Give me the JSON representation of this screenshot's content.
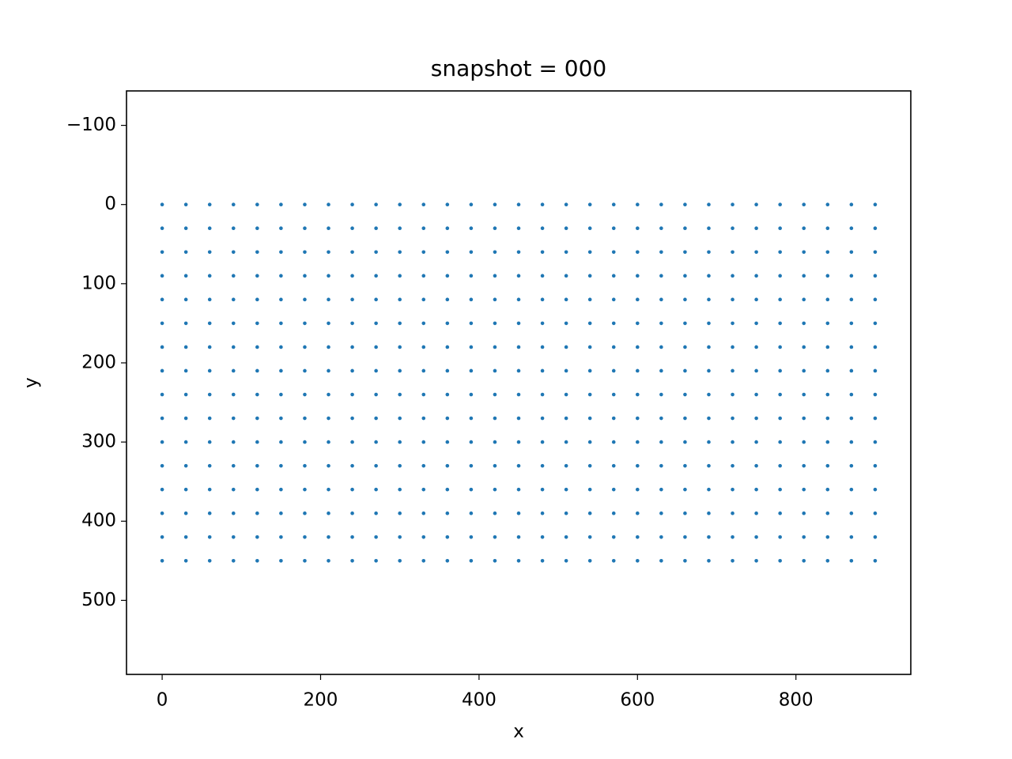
{
  "chart_data": {
    "type": "scatter",
    "title": "snapshot = 000",
    "x_label": "x",
    "y_label": "y",
    "color": "#1f77b4",
    "grid": false,
    "y_inverted": true,
    "xlim": [
      -45,
      945
    ],
    "ylim": [
      593.5,
      -143.5
    ],
    "xticks": [
      0,
      200,
      400,
      600,
      800
    ],
    "yticks": [
      {
        "value": -100,
        "label": "−100"
      },
      0,
      100,
      200,
      300,
      400,
      500
    ],
    "x": [
      0,
      30,
      60,
      90,
      120,
      150,
      180,
      210,
      240,
      270,
      300,
      330,
      360,
      390,
      420,
      450,
      480,
      510,
      540,
      570,
      600,
      630,
      660,
      690,
      720,
      750,
      780,
      810,
      840,
      870,
      900,
      0,
      30,
      60,
      90,
      120,
      150,
      180,
      210,
      240,
      270,
      300,
      330,
      360,
      390,
      420,
      450,
      480,
      510,
      540,
      570,
      600,
      630,
      660,
      690,
      720,
      750,
      780,
      810,
      840,
      870,
      900,
      0,
      30,
      60,
      90,
      120,
      150,
      180,
      210,
      240,
      270,
      300,
      330,
      360,
      390,
      420,
      450,
      480,
      510,
      540,
      570,
      600,
      630,
      660,
      690,
      720,
      750,
      780,
      810,
      840,
      870,
      900,
      0,
      30,
      60,
      90,
      120,
      150,
      180,
      210,
      240,
      270,
      300,
      330,
      360,
      390,
      420,
      450,
      480,
      510,
      540,
      570,
      600,
      630,
      660,
      690,
      720,
      750,
      780,
      810,
      840,
      870,
      900,
      0,
      30,
      60,
      90,
      120,
      150,
      180,
      210,
      240,
      270,
      300,
      330,
      360,
      390,
      420,
      450,
      480,
      510,
      540,
      570,
      600,
      630,
      660,
      690,
      720,
      750,
      780,
      810,
      840,
      870,
      900,
      0,
      30,
      60,
      90,
      120,
      150,
      180,
      210,
      240,
      270,
      300,
      330,
      360,
      390,
      420,
      450,
      480,
      510,
      540,
      570,
      600,
      630,
      660,
      690,
      720,
      750,
      780,
      810,
      840,
      870,
      900,
      0,
      30,
      60,
      90,
      120,
      150,
      180,
      210,
      240,
      270,
      300,
      330,
      360,
      390,
      420,
      450,
      480,
      510,
      540,
      570,
      600,
      630,
      660,
      690,
      720,
      750,
      780,
      810,
      840,
      870,
      900,
      0,
      30,
      60,
      90,
      120,
      150,
      180,
      210,
      240,
      270,
      300,
      330,
      360,
      390,
      420,
      450,
      480,
      510,
      540,
      570,
      600,
      630,
      660,
      690,
      720,
      750,
      780,
      810,
      840,
      870,
      900,
      0,
      30,
      60,
      90,
      120,
      150,
      180,
      210,
      240,
      270,
      300,
      330,
      360,
      390,
      420,
      450,
      480,
      510,
      540,
      570,
      600,
      630,
      660,
      690,
      720,
      750,
      780,
      810,
      840,
      870,
      900,
      0,
      30,
      60,
      90,
      120,
      150,
      180,
      210,
      240,
      270,
      300,
      330,
      360,
      390,
      420,
      450,
      480,
      510,
      540,
      570,
      600,
      630,
      660,
      690,
      720,
      750,
      780,
      810,
      840,
      870,
      900,
      0,
      30,
      60,
      90,
      120,
      150,
      180,
      210,
      240,
      270,
      300,
      330,
      360,
      390,
      420,
      450,
      480,
      510,
      540,
      570,
      600,
      630,
      660,
      690,
      720,
      750,
      780,
      810,
      840,
      870,
      900,
      0,
      30,
      60,
      90,
      120,
      150,
      180,
      210,
      240,
      270,
      300,
      330,
      360,
      390,
      420,
      450,
      480,
      510,
      540,
      570,
      600,
      630,
      660,
      690,
      720,
      750,
      780,
      810,
      840,
      870,
      900,
      0,
      30,
      60,
      90,
      120,
      150,
      180,
      210,
      240,
      270,
      300,
      330,
      360,
      390,
      420,
      450,
      480,
      510,
      540,
      570,
      600,
      630,
      660,
      690,
      720,
      750,
      780,
      810,
      840,
      870,
      900,
      0,
      30,
      60,
      90,
      120,
      150,
      180,
      210,
      240,
      270,
      300,
      330,
      360,
      390,
      420,
      450,
      480,
      510,
      540,
      570,
      600,
      630,
      660,
      690,
      720,
      750,
      780,
      810,
      840,
      870,
      900,
      0,
      30,
      60,
      90,
      120,
      150,
      180,
      210,
      240,
      270,
      300,
      330,
      360,
      390,
      420,
      450,
      480,
      510,
      540,
      570,
      600,
      630,
      660,
      690,
      720,
      750,
      780,
      810,
      840,
      870,
      900,
      0,
      30,
      60,
      90,
      120,
      150,
      180,
      210,
      240,
      270,
      300,
      330,
      360,
      390,
      420,
      450,
      480,
      510,
      540,
      570,
      600,
      630,
      660,
      690,
      720,
      750,
      780,
      810,
      840,
      870,
      900
    ],
    "values": [
      0,
      0,
      0,
      0,
      0,
      0,
      0,
      0,
      0,
      0,
      0,
      0,
      0,
      0,
      0,
      0,
      0,
      0,
      0,
      0,
      0,
      0,
      0,
      0,
      0,
      0,
      0,
      0,
      0,
      0,
      0,
      30,
      30,
      30,
      30,
      30,
      30,
      30,
      30,
      30,
      30,
      30,
      30,
      30,
      30,
      30,
      30,
      30,
      30,
      30,
      30,
      30,
      30,
      30,
      30,
      30,
      30,
      30,
      30,
      30,
      30,
      30,
      60,
      60,
      60,
      60,
      60,
      60,
      60,
      60,
      60,
      60,
      60,
      60,
      60,
      60,
      60,
      60,
      60,
      60,
      60,
      60,
      60,
      60,
      60,
      60,
      60,
      60,
      60,
      60,
      60,
      60,
      60,
      90,
      90,
      90,
      90,
      90,
      90,
      90,
      90,
      90,
      90,
      90,
      90,
      90,
      90,
      90,
      90,
      90,
      90,
      90,
      90,
      90,
      90,
      90,
      90,
      90,
      90,
      90,
      90,
      90,
      90,
      90,
      120,
      120,
      120,
      120,
      120,
      120,
      120,
      120,
      120,
      120,
      120,
      120,
      120,
      120,
      120,
      120,
      120,
      120,
      120,
      120,
      120,
      120,
      120,
      120,
      120,
      120,
      120,
      120,
      120,
      120,
      120,
      150,
      150,
      150,
      150,
      150,
      150,
      150,
      150,
      150,
      150,
      150,
      150,
      150,
      150,
      150,
      150,
      150,
      150,
      150,
      150,
      150,
      150,
      150,
      150,
      150,
      150,
      150,
      150,
      150,
      150,
      150,
      180,
      180,
      180,
      180,
      180,
      180,
      180,
      180,
      180,
      180,
      180,
      180,
      180,
      180,
      180,
      180,
      180,
      180,
      180,
      180,
      180,
      180,
      180,
      180,
      180,
      180,
      180,
      180,
      180,
      180,
      180,
      210,
      210,
      210,
      210,
      210,
      210,
      210,
      210,
      210,
      210,
      210,
      210,
      210,
      210,
      210,
      210,
      210,
      210,
      210,
      210,
      210,
      210,
      210,
      210,
      210,
      210,
      210,
      210,
      210,
      210,
      210,
      240,
      240,
      240,
      240,
      240,
      240,
      240,
      240,
      240,
      240,
      240,
      240,
      240,
      240,
      240,
      240,
      240,
      240,
      240,
      240,
      240,
      240,
      240,
      240,
      240,
      240,
      240,
      240,
      240,
      240,
      240,
      270,
      270,
      270,
      270,
      270,
      270,
      270,
      270,
      270,
      270,
      270,
      270,
      270,
      270,
      270,
      270,
      270,
      270,
      270,
      270,
      270,
      270,
      270,
      270,
      270,
      270,
      270,
      270,
      270,
      270,
      270,
      300,
      300,
      300,
      300,
      300,
      300,
      300,
      300,
      300,
      300,
      300,
      300,
      300,
      300,
      300,
      300,
      300,
      300,
      300,
      300,
      300,
      300,
      300,
      300,
      300,
      300,
      300,
      300,
      300,
      300,
      300,
      330,
      330,
      330,
      330,
      330,
      330,
      330,
      330,
      330,
      330,
      330,
      330,
      330,
      330,
      330,
      330,
      330,
      330,
      330,
      330,
      330,
      330,
      330,
      330,
      330,
      330,
      330,
      330,
      330,
      330,
      330,
      360,
      360,
      360,
      360,
      360,
      360,
      360,
      360,
      360,
      360,
      360,
      360,
      360,
      360,
      360,
      360,
      360,
      360,
      360,
      360,
      360,
      360,
      360,
      360,
      360,
      360,
      360,
      360,
      360,
      360,
      360,
      390,
      390,
      390,
      390,
      390,
      390,
      390,
      390,
      390,
      390,
      390,
      390,
      390,
      390,
      390,
      390,
      390,
      390,
      390,
      390,
      390,
      390,
      390,
      390,
      390,
      390,
      390,
      390,
      390,
      390,
      390,
      420,
      420,
      420,
      420,
      420,
      420,
      420,
      420,
      420,
      420,
      420,
      420,
      420,
      420,
      420,
      420,
      420,
      420,
      420,
      420,
      420,
      420,
      420,
      420,
      420,
      420,
      420,
      420,
      420,
      420,
      420,
      450,
      450,
      450,
      450,
      450,
      450,
      450,
      450,
      450,
      450,
      450,
      450,
      450,
      450,
      450,
      450,
      450,
      450,
      450,
      450,
      450,
      450,
      450,
      450,
      450,
      450,
      450,
      450,
      450,
      450,
      450
    ]
  }
}
